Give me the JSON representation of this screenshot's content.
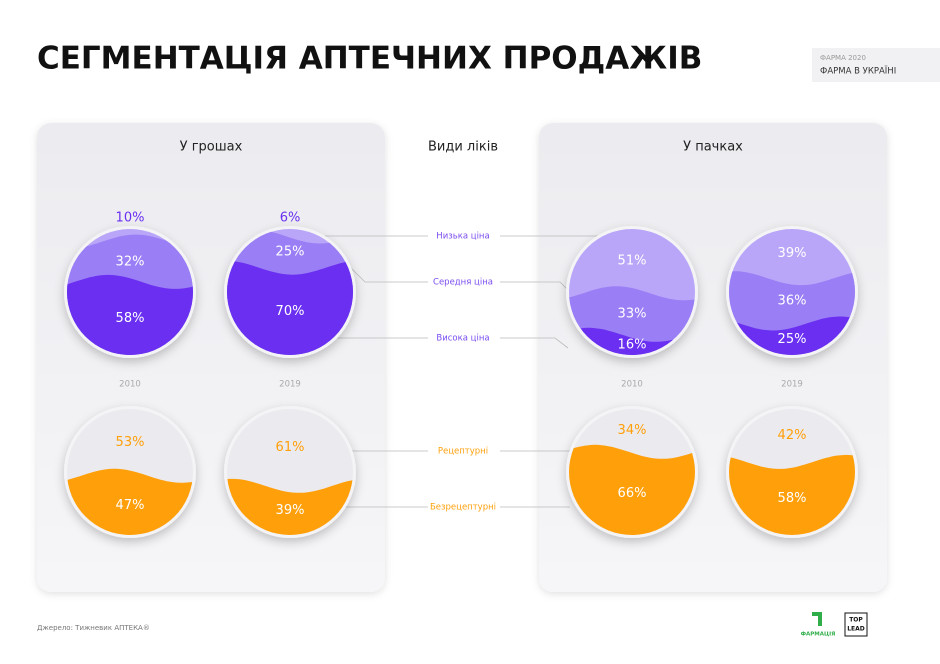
{
  "header": {
    "title": "СЕГМЕНТАЦІЯ АПТЕЧНИХ ПРОДАЖІВ",
    "badge_top": "ФАРМА 2020",
    "badge_main": "ФАРМА В УКРАЇНІ"
  },
  "center_title": "Види ліків",
  "legend": {
    "price": [
      "Низька ціна",
      "Середня ціна",
      "Висока ціна"
    ],
    "rx": [
      "Рецептурні",
      "Безрецептурні"
    ]
  },
  "panels": [
    {
      "title": "У грошах",
      "charts": [
        {
          "year": "2010",
          "price": {
            "values": [
              10,
              32,
              58
            ],
            "value_labels": [
              "10%",
              "32%",
              "58%"
            ]
          },
          "rx": {
            "values": [
              53,
              47
            ],
            "value_labels": [
              "53%",
              "47%"
            ]
          }
        },
        {
          "year": "2019",
          "price": {
            "values": [
              6,
              25,
              70
            ],
            "value_labels": [
              "6%",
              "25%",
              "70%"
            ]
          },
          "rx": {
            "values": [
              61,
              39
            ],
            "value_labels": [
              "61%",
              "39%"
            ]
          }
        }
      ]
    },
    {
      "title": "У пачках",
      "charts": [
        {
          "year": "2010",
          "price": {
            "values": [
              51,
              33,
              16
            ],
            "value_labels": [
              "51%",
              "33%",
              "16%"
            ]
          },
          "rx": {
            "values": [
              34,
              66
            ],
            "value_labels": [
              "34%",
              "66%"
            ]
          }
        },
        {
          "year": "2019",
          "price": {
            "values": [
              39,
              36,
              25
            ],
            "value_labels": [
              "39%",
              "36%",
              "25%"
            ]
          },
          "rx": {
            "values": [
              42,
              58
            ],
            "value_labels": [
              "42%",
              "58%"
            ]
          }
        }
      ]
    }
  ],
  "footer": {
    "source": "Джерело: Тижневик АПТЕКА®",
    "logo_left": "ФАРМАЦІЯ",
    "logo_right_top": "TOP",
    "logo_right_bottom": "LEAD"
  }
}
